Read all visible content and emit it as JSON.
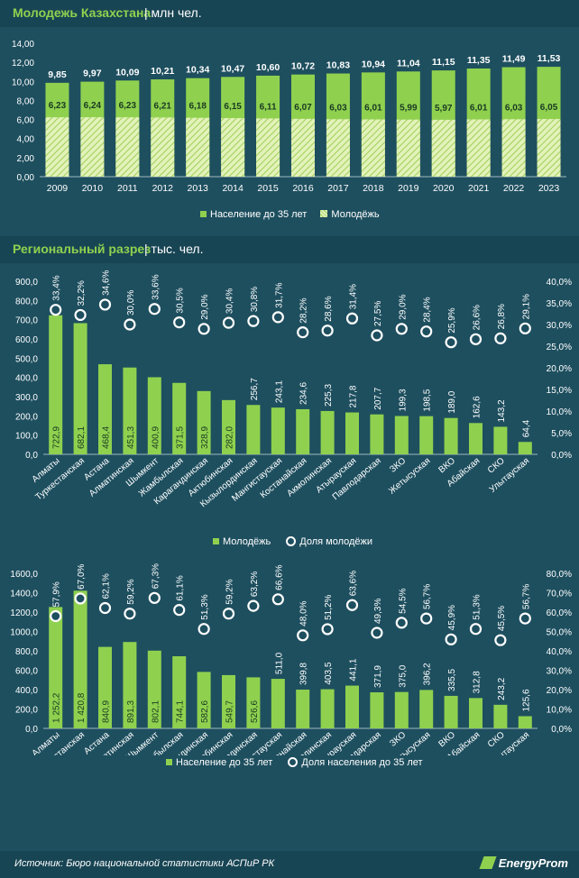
{
  "section1": {
    "title": "Молодежь Казахстана",
    "unit": "| млн чел."
  },
  "section2": {
    "title": "Региональный разрез",
    "unit": "| тыс. чел."
  },
  "legend1": {
    "a": "Население до 35 лет",
    "b": "Молодёжь"
  },
  "legend2": {
    "a": "Молодёжь",
    "b": "Доля молодёжи"
  },
  "legend3": {
    "a": "Население до 35 лет",
    "b": "Доля населения до 35 лет"
  },
  "footer": {
    "source": "Источник: Бюро национальной статистики АСПиР РК",
    "brand": "EnergyProm"
  },
  "colors": {
    "background": "#1e4f5f",
    "bar": "#8fd14f",
    "hatch": "#e3f2b9",
    "band": "#184554"
  },
  "chart_data": [
    {
      "type": "bar",
      "categories": [
        "2009",
        "2010",
        "2011",
        "2012",
        "2013",
        "2014",
        "2015",
        "2016",
        "2017",
        "2018",
        "2019",
        "2020",
        "2021",
        "2022",
        "2023"
      ],
      "series": [
        {
          "name": "Население до 35 лет",
          "values": [
            9.85,
            9.97,
            10.09,
            10.21,
            10.34,
            10.47,
            10.6,
            10.72,
            10.83,
            10.94,
            11.04,
            11.15,
            11.35,
            11.49,
            11.53
          ],
          "labels": [
            "9,85",
            "9,97",
            "10,09",
            "10,21",
            "10,34",
            "10,47",
            "10,60",
            "10,72",
            "10,83",
            "10,94",
            "11,04",
            "11,15",
            "11,35",
            "11,49",
            "11,53"
          ]
        },
        {
          "name": "Молодёжь",
          "values": [
            6.23,
            6.24,
            6.23,
            6.21,
            6.18,
            6.15,
            6.11,
            6.07,
            6.03,
            6.01,
            5.99,
            5.97,
            6.01,
            6.03,
            6.05
          ],
          "labels": [
            "6,23",
            "6,24",
            "6,23",
            "6,21",
            "6,18",
            "6,15",
            "6,11",
            "6,07",
            "6,03",
            "6,01",
            "5,99",
            "5,97",
            "6,01",
            "6,03",
            "6,05"
          ]
        }
      ],
      "ylim": [
        0,
        14
      ],
      "yticks": [
        "0,00",
        "2,00",
        "4,00",
        "6,00",
        "8,00",
        "10,00",
        "12,00",
        "14,00"
      ]
    },
    {
      "type": "bar",
      "categories": [
        "Алматы",
        "Туркестанская",
        "Астана",
        "Алматинская",
        "Шымкент",
        "Жамбылская",
        "Карагандинская",
        "Актюбинская",
        "Кызылординская",
        "Мангистауская",
        "Костанайская",
        "Акмолинская",
        "Атырауская",
        "Павлодарская",
        "ЗКО",
        "Жетысуская",
        "ВКО",
        "Абайская",
        "СКО",
        "Улытауская"
      ],
      "series": [
        {
          "name": "Молодёжь",
          "values": [
            722.9,
            682.1,
            468.4,
            451.3,
            400.9,
            371.5,
            328.9,
            282.0,
            256.7,
            243.1,
            234.6,
            225.3,
            217.8,
            207.7,
            199.3,
            198.5,
            189.0,
            162.6,
            143.2,
            64.4
          ],
          "labels": [
            "722,9",
            "682,1",
            "468,4",
            "451,3",
            "400,9",
            "371,5",
            "328,9",
            "282,0",
            "256,7",
            "243,1",
            "234,6",
            "225,3",
            "217,8",
            "207,7",
            "199,3",
            "198,5",
            "189,0",
            "162,6",
            "143,2",
            "64,4"
          ]
        },
        {
          "name": "Доля молодёжи",
          "values": [
            33.4,
            32.2,
            34.6,
            30.0,
            33.6,
            30.5,
            29.0,
            30.4,
            30.8,
            31.7,
            28.2,
            28.6,
            31.4,
            27.5,
            29.0,
            28.4,
            25.9,
            26.6,
            26.8,
            29.1
          ],
          "labels": [
            "33,4%",
            "32,2%",
            "34,6%",
            "30,0%",
            "33,6%",
            "30,5%",
            "29,0%",
            "30,4%",
            "30,8%",
            "31,7%",
            "28,2%",
            "28,6%",
            "31,4%",
            "27,5%",
            "29,0%",
            "28,4%",
            "25,9%",
            "26,6%",
            "26,8%",
            "29,1%"
          ]
        }
      ],
      "ylim": [
        0,
        900
      ],
      "y2lim": [
        0,
        40
      ],
      "yticks": [
        "0,0",
        "100,0",
        "200,0",
        "300,0",
        "400,0",
        "500,0",
        "600,0",
        "700,0",
        "800,0",
        "900,0"
      ],
      "y2ticks": [
        "0,0%",
        "5,0%",
        "10,0%",
        "15,0%",
        "20,0%",
        "25,0%",
        "30,0%",
        "35,0%",
        "40,0%"
      ]
    },
    {
      "type": "bar",
      "categories": [
        "Алматы",
        "Туркестанская",
        "Астана",
        "Алматинская",
        "Шымкент",
        "Жамбылская",
        "Карагандинская",
        "Актюбинская",
        "Кызылординская",
        "Мангистауская",
        "Костанайская",
        "Акмолинская",
        "Атырауская",
        "Павлодарская",
        "ЗКО",
        "Жетысуская",
        "ВКО",
        "Абайская",
        "СКО",
        "Улытауская"
      ],
      "series": [
        {
          "name": "Население до 35 лет",
          "values": [
            1252.2,
            1420.8,
            840.9,
            891.3,
            802.1,
            744.1,
            582.6,
            549.7,
            526.6,
            511.0,
            399.8,
            403.5,
            441.1,
            371.9,
            375.0,
            396.2,
            335.5,
            312.8,
            243.2,
            125.6
          ],
          "labels": [
            "1 252,2",
            "1 420,8",
            "840,9",
            "891,3",
            "802,1",
            "744,1",
            "582,6",
            "549,7",
            "526,6",
            "511,0",
            "399,8",
            "403,5",
            "441,1",
            "371,9",
            "375,0",
            "396,2",
            "335,5",
            "312,8",
            "243,2",
            "125,6"
          ]
        },
        {
          "name": "Доля населения до 35 лет",
          "values": [
            57.9,
            67.0,
            62.1,
            59.2,
            67.3,
            61.1,
            51.3,
            59.2,
            63.2,
            66.6,
            48.0,
            51.2,
            63.6,
            49.3,
            54.5,
            56.7,
            45.9,
            51.3,
            45.5,
            56.7
          ],
          "labels": [
            "57,9%",
            "67,0%",
            "62,1%",
            "59,2%",
            "67,3%",
            "61,1%",
            "51,3%",
            "59,2%",
            "63,2%",
            "66,6%",
            "48,0%",
            "51,2%",
            "63,6%",
            "49,3%",
            "54,5%",
            "56,7%",
            "45,9%",
            "51,3%",
            "45,5%",
            "56,7%"
          ]
        }
      ],
      "ylim": [
        0,
        1600
      ],
      "y2lim": [
        0,
        80
      ],
      "yticks": [
        "0,0",
        "200,0",
        "400,0",
        "600,0",
        "800,0",
        "1000,0",
        "1200,0",
        "1400,0",
        "1600,0"
      ],
      "y2ticks": [
        "0,0%",
        "10,0%",
        "20,0%",
        "30,0%",
        "40,0%",
        "50,0%",
        "60,0%",
        "70,0%",
        "80,0%"
      ]
    }
  ]
}
